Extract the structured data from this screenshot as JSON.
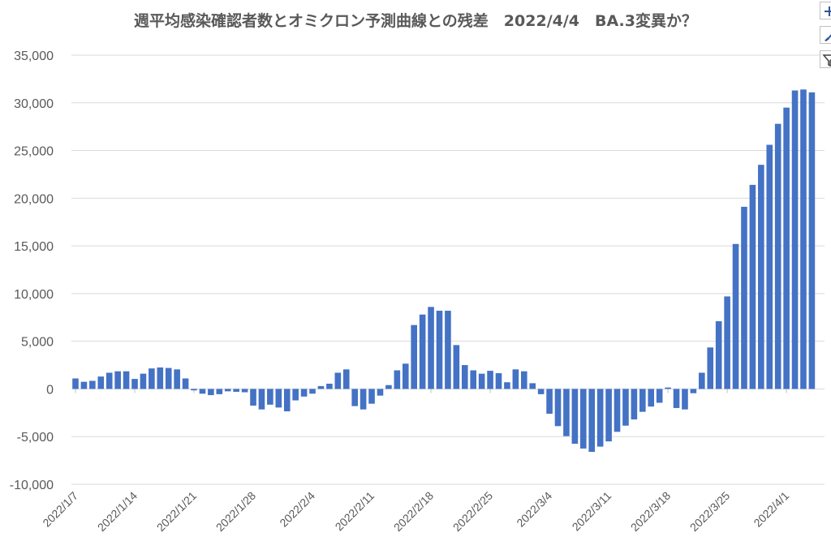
{
  "chart_data": {
    "type": "bar",
    "title": "週平均感染確認者数とオミクロン予測曲線との残差　2022/4/4　BA.3変異か？",
    "xlabel": "",
    "ylabel": "",
    "ylim": [
      -10000,
      35000
    ],
    "y_ticks": [
      35000,
      30000,
      25000,
      20000,
      15000,
      10000,
      5000,
      0,
      -5000,
      -10000
    ],
    "y_tick_labels": [
      "35,000",
      "30,000",
      "25,000",
      "20,000",
      "15,000",
      "10,000",
      "5,000",
      "0",
      "-5,000",
      "-10,000"
    ],
    "x_tick_labels": [
      "2022/1/7",
      "2022/1/14",
      "2022/1/21",
      "2022/1/28",
      "2022/2/4",
      "2022/2/11",
      "2022/2/18",
      "2022/2/25",
      "2022/3/4",
      "2022/3/11",
      "2022/3/18",
      "2022/3/25",
      "2022/4/1"
    ],
    "categories": [
      "2022/1/7",
      "2022/1/8",
      "2022/1/9",
      "2022/1/10",
      "2022/1/11",
      "2022/1/12",
      "2022/1/13",
      "2022/1/14",
      "2022/1/15",
      "2022/1/16",
      "2022/1/17",
      "2022/1/18",
      "2022/1/19",
      "2022/1/20",
      "2022/1/21",
      "2022/1/22",
      "2022/1/23",
      "2022/1/24",
      "2022/1/25",
      "2022/1/26",
      "2022/1/27",
      "2022/1/28",
      "2022/1/29",
      "2022/1/30",
      "2022/1/31",
      "2022/2/1",
      "2022/2/2",
      "2022/2/3",
      "2022/2/4",
      "2022/2/5",
      "2022/2/6",
      "2022/2/7",
      "2022/2/8",
      "2022/2/9",
      "2022/2/10",
      "2022/2/11",
      "2022/2/12",
      "2022/2/13",
      "2022/2/14",
      "2022/2/15",
      "2022/2/16",
      "2022/2/17",
      "2022/2/18",
      "2022/2/19",
      "2022/2/20",
      "2022/2/21",
      "2022/2/22",
      "2022/2/23",
      "2022/2/24",
      "2022/2/25",
      "2022/2/26",
      "2022/2/27",
      "2022/2/28",
      "2022/3/1",
      "2022/3/2",
      "2022/3/3",
      "2022/3/4",
      "2022/3/5",
      "2022/3/6",
      "2022/3/7",
      "2022/3/8",
      "2022/3/9",
      "2022/3/10",
      "2022/3/11",
      "2022/3/12",
      "2022/3/13",
      "2022/3/14",
      "2022/3/15",
      "2022/3/16",
      "2022/3/17",
      "2022/3/18",
      "2022/3/19",
      "2022/3/20",
      "2022/3/21",
      "2022/3/22",
      "2022/3/23",
      "2022/3/24",
      "2022/3/25",
      "2022/3/26",
      "2022/3/27",
      "2022/3/28",
      "2022/3/29",
      "2022/3/30",
      "2022/3/31",
      "2022/4/1",
      "2022/4/2",
      "2022/4/3",
      "2022/4/4"
    ],
    "values": [
      1100,
      750,
      850,
      1300,
      1700,
      1850,
      1850,
      1050,
      1600,
      2150,
      2250,
      2200,
      2050,
      1100,
      -150,
      -500,
      -650,
      -550,
      -250,
      -300,
      -350,
      -1750,
      -2150,
      -1650,
      -1950,
      -2350,
      -1200,
      -800,
      -500,
      300,
      550,
      1700,
      2050,
      -1800,
      -2150,
      -1550,
      -700,
      400,
      1950,
      2650,
      6700,
      7800,
      8600,
      8200,
      8200,
      4600,
      2500,
      1950,
      1600,
      1900,
      1650,
      700,
      2050,
      1850,
      600,
      -550,
      -2600,
      -3900,
      -4950,
      -5750,
      -6250,
      -6600,
      -6050,
      -5500,
      -4500,
      -3850,
      -3200,
      -2400,
      -1850,
      -1450,
      150,
      -2000,
      -2150,
      -450,
      1700,
      4350,
      7100,
      9700,
      15200,
      19100,
      21400,
      23500,
      25600,
      27800,
      29500,
      31300,
      31400,
      31100
    ],
    "bar_color": "#4472C4",
    "grid": true,
    "legend": "none"
  },
  "toolbar": {
    "buttons": [
      "chart-elements-button",
      "chart-styles-button",
      "chart-filters-button"
    ]
  }
}
